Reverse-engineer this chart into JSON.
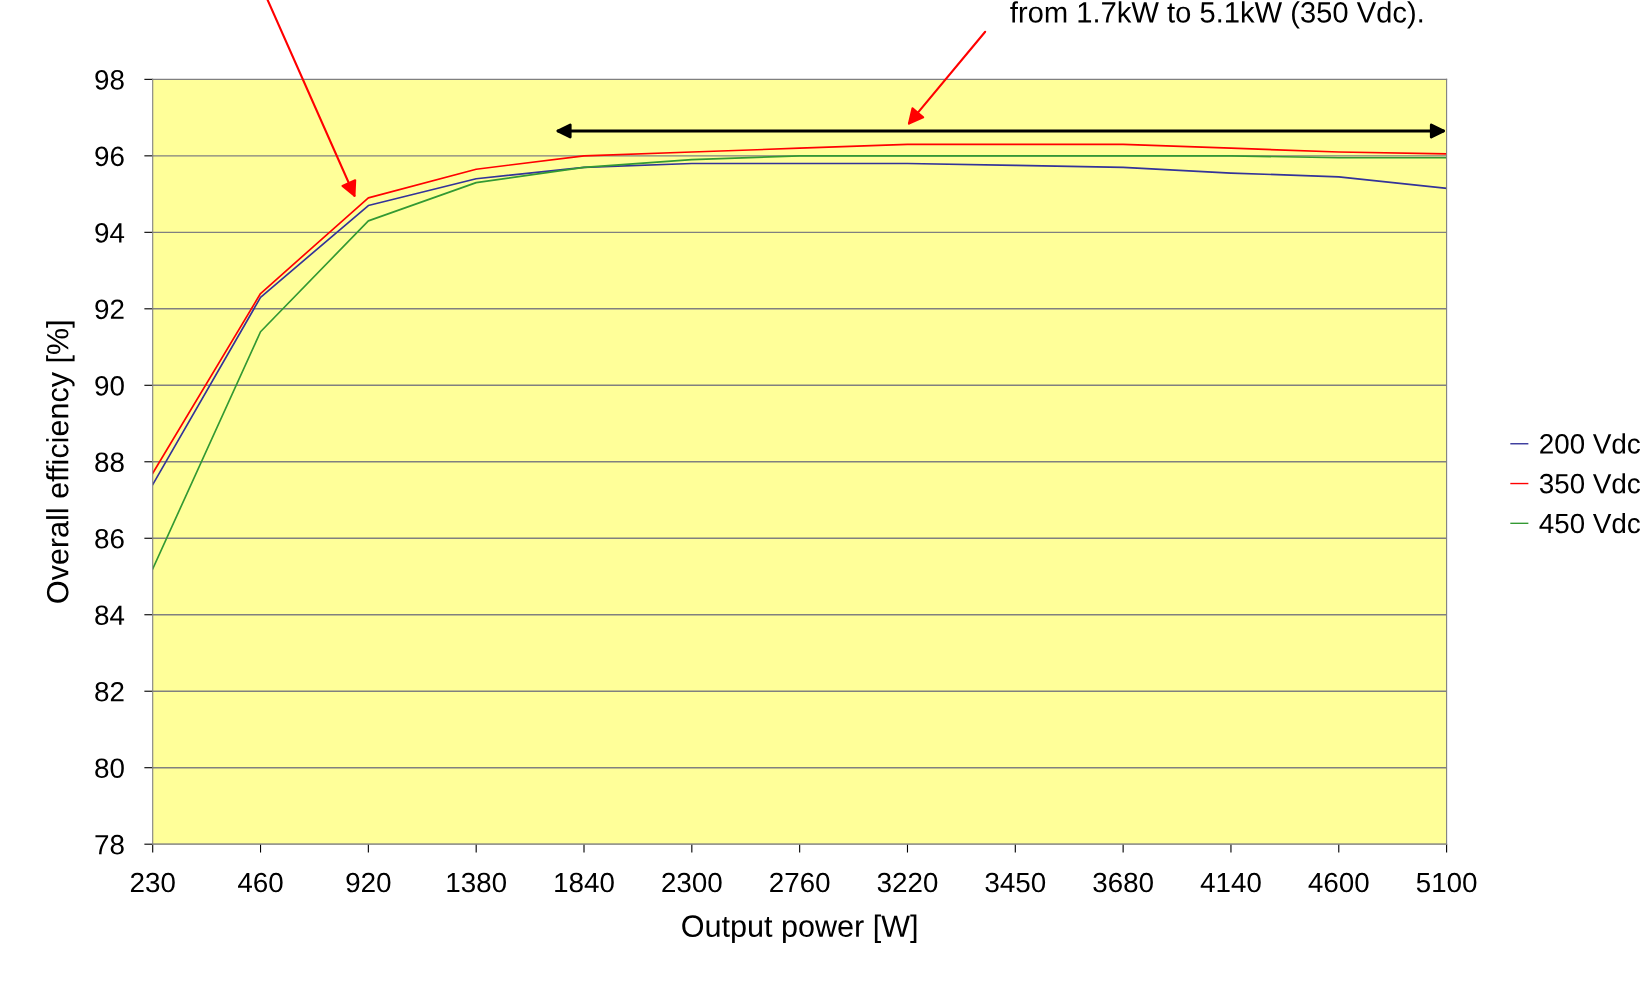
{
  "chart_data": {
    "type": "line",
    "xlabel": "Output power [W]",
    "ylabel": "Overall efficiency [%]",
    "categories": [
      "230",
      "460",
      "920",
      "1380",
      "1840",
      "2300",
      "2760",
      "3220",
      "3450",
      "3680",
      "4140",
      "4600",
      "5100"
    ],
    "series": [
      {
        "name": "200 Vdc",
        "color": "#333399",
        "values": [
          87.4,
          92.3,
          94.7,
          95.4,
          95.7,
          95.8,
          95.8,
          95.8,
          95.75,
          95.7,
          95.55,
          95.45,
          95.15
        ]
      },
      {
        "name": "350 Vdc",
        "color": "#ff0000",
        "values": [
          87.7,
          92.4,
          94.9,
          95.65,
          96.0,
          96.1,
          96.2,
          96.3,
          96.3,
          96.3,
          96.2,
          96.1,
          96.05
        ]
      },
      {
        "name": "450 Vdc",
        "color": "#339933",
        "values": [
          85.2,
          91.4,
          94.3,
          95.3,
          95.7,
          95.9,
          96.0,
          96.0,
          96.0,
          96.0,
          96.0,
          95.95,
          95.95
        ]
      }
    ],
    "ylim": [
      78,
      98
    ],
    "yticks": [
      78,
      80,
      82,
      84,
      86,
      88,
      90,
      92,
      94,
      96,
      98
    ],
    "grid": "y",
    "legend": "right",
    "marker": "none",
    "line_style": "solid",
    "annotations": [
      "from 1.7kW to 5.1kW (350 Vdc)."
    ]
  }
}
